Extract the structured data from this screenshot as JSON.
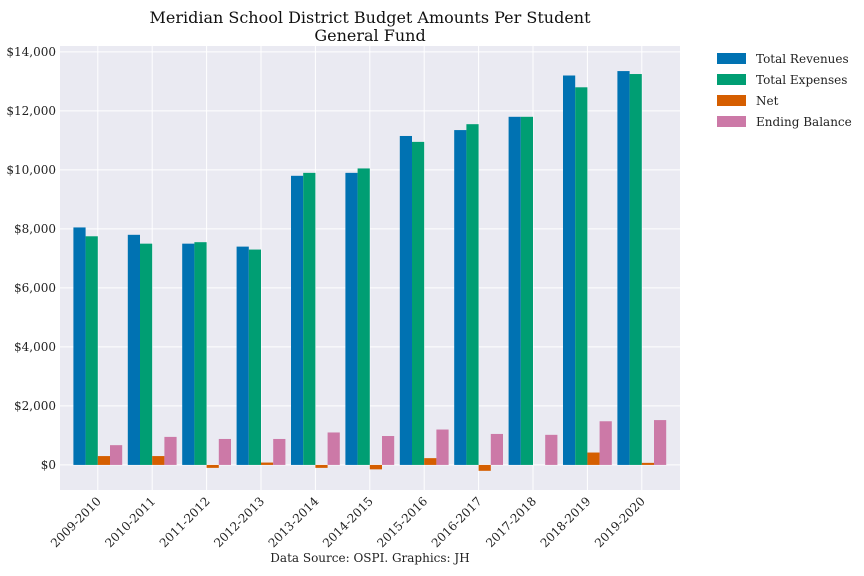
{
  "chart_data": {
    "type": "bar",
    "title": "Meridian School District Budget Amounts Per Student",
    "subtitle": "General Fund",
    "source": "Data Source: OSPI. Graphics: JH",
    "categories": [
      "2009-2010",
      "2010-2011",
      "2011-2012",
      "2012-2013",
      "2013-2014",
      "2014-2015",
      "2015-2016",
      "2016-2017",
      "2017-2018",
      "2018-2019",
      "2019-2020"
    ],
    "series": [
      {
        "name": "Total Revenues",
        "color": "#0072B2",
        "values": [
          8050,
          7800,
          7500,
          7400,
          9800,
          9900,
          11150,
          11350,
          11800,
          13200,
          13350
        ]
      },
      {
        "name": "Total Expenses",
        "color": "#009E73",
        "values": [
          7750,
          7500,
          7550,
          7300,
          9900,
          10050,
          10950,
          11550,
          11800,
          12800,
          13250
        ]
      },
      {
        "name": "Net",
        "color": "#D55E00",
        "values": [
          300,
          300,
          -100,
          80,
          -100,
          -150,
          230,
          -200,
          0,
          420,
          70
        ]
      },
      {
        "name": "Ending Balance",
        "color": "#CC79A7",
        "values": [
          670,
          950,
          880,
          880,
          1100,
          980,
          1200,
          1050,
          1020,
          1480,
          1520
        ]
      }
    ],
    "ylim": [
      -850,
      14200
    ],
    "yticks": [
      0,
      2000,
      4000,
      6000,
      8000,
      10000,
      12000,
      14000
    ],
    "ytick_labels": [
      "$0",
      "$2,000",
      "$4,000",
      "$6,000",
      "$8,000",
      "$10,000",
      "$12,000",
      "$14,000"
    ],
    "grid": true,
    "legend_position": "outside-right"
  }
}
